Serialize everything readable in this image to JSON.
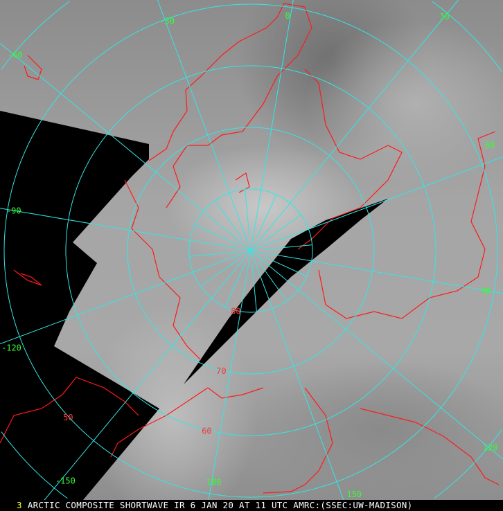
{
  "caption": {
    "frame_number": "3",
    "text": "ARCTIC COMPOSITE SHORTWAVE IR 6 JAN 20 AT 11 UTC AMRC:(SSEC:UW-MADISON)"
  },
  "map": {
    "projection": "north polar stereographic",
    "colors": {
      "grid": "#33e6e6",
      "coastline": "#ff1a1a",
      "longitude_label": "#33ff33",
      "latitude_label": "#ff3333",
      "no_data": "#000000"
    },
    "latitude_labels": [
      "80",
      "70",
      "60",
      "50"
    ],
    "longitude_labels": [
      "-30",
      "0",
      "30",
      "60",
      "90",
      "120",
      "150",
      "180",
      "-150",
      "-120",
      "-90",
      "-60"
    ]
  }
}
